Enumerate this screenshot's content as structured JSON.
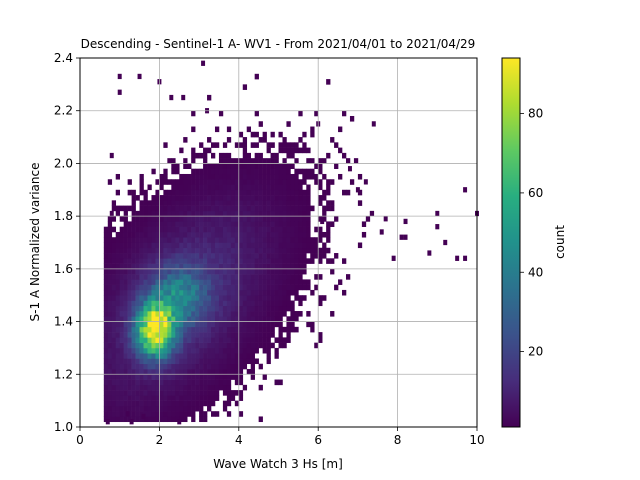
{
  "chart_data": {
    "type": "heatmap",
    "title": "Descending - Sentinel-1 A- WV1 - From 2021/04/01 to 2021/04/29",
    "xlabel": "Wave Watch 3 Hs [m]",
    "ylabel": "S-1 A Normalized variance",
    "xlim": [
      0,
      10
    ],
    "ylim": [
      1.0,
      2.4
    ],
    "x_ticks": [
      "0",
      "2",
      "4",
      "6",
      "8",
      "10"
    ],
    "x_tick_values": [
      0,
      2,
      4,
      6,
      8,
      10
    ],
    "y_ticks": [
      "1.0",
      "1.2",
      "1.4",
      "1.6",
      "1.8",
      "2.0",
      "2.2",
      "2.4"
    ],
    "y_tick_values": [
      1.0,
      1.2,
      1.4,
      1.6,
      1.8,
      2.0,
      2.2,
      2.4
    ],
    "grid": true,
    "colormap": "viridis",
    "colorbar": {
      "label": "count",
      "range": [
        1,
        94
      ],
      "ticks": [
        "20",
        "40",
        "60",
        "80"
      ],
      "tick_values": [
        20,
        40,
        60,
        80
      ]
    },
    "bin_width": [
      0.1,
      0.02
    ],
    "density_peak": {
      "x": 1.9,
      "y": 1.37,
      "count": 94
    },
    "density_secondary_peak": {
      "x": 2.5,
      "y": 1.5,
      "count": 55
    },
    "density_spread": {
      "sx_main": 0.33,
      "sy_main": 0.07,
      "sx_wide": 1.4,
      "sy_wide": 0.2
    },
    "data_extent": {
      "x": [
        0.6,
        10.0
      ],
      "y": [
        1.02,
        2.38
      ]
    },
    "outliers": [
      {
        "x": 9.7,
        "y": 1.9
      },
      {
        "x": 10.0,
        "y": 1.81
      },
      {
        "x": 9.0,
        "y": 1.81
      },
      {
        "x": 9.0,
        "y": 1.76
      },
      {
        "x": 9.2,
        "y": 1.7
      },
      {
        "x": 9.5,
        "y": 1.64
      },
      {
        "x": 9.7,
        "y": 1.64
      },
      {
        "x": 8.8,
        "y": 1.66
      },
      {
        "x": 8.2,
        "y": 1.72
      },
      {
        "x": 8.1,
        "y": 1.72
      },
      {
        "x": 8.2,
        "y": 1.78
      },
      {
        "x": 7.7,
        "y": 1.79
      },
      {
        "x": 7.6,
        "y": 1.74
      },
      {
        "x": 7.9,
        "y": 1.64
      },
      {
        "x": 7.4,
        "y": 2.15
      },
      {
        "x": 6.0,
        "y": 2.15
      },
      {
        "x": 3.1,
        "y": 2.38
      },
      {
        "x": 2.0,
        "y": 2.31
      },
      {
        "x": 1.0,
        "y": 2.33
      },
      {
        "x": 1.0,
        "y": 2.27
      },
      {
        "x": 1.5,
        "y": 2.33
      },
      {
        "x": 2.6,
        "y": 2.25
      },
      {
        "x": 3.2,
        "y": 2.2
      },
      {
        "x": 2.3,
        "y": 2.25
      },
      {
        "x": 1.2,
        "y": 1.05
      },
      {
        "x": 0.7,
        "y": 1.02
      },
      {
        "x": 1.3,
        "y": 1.02
      },
      {
        "x": 1.6,
        "y": 1.04
      },
      {
        "x": 2.5,
        "y": 1.02
      },
      {
        "x": 6.1,
        "y": 1.78
      },
      {
        "x": 6.8,
        "y": 1.98
      },
      {
        "x": 7.2,
        "y": 1.93
      },
      {
        "x": 7.0,
        "y": 1.9
      },
      {
        "x": 0.8,
        "y": 2.03
      },
      {
        "x": 0.8,
        "y": 1.81
      }
    ]
  }
}
